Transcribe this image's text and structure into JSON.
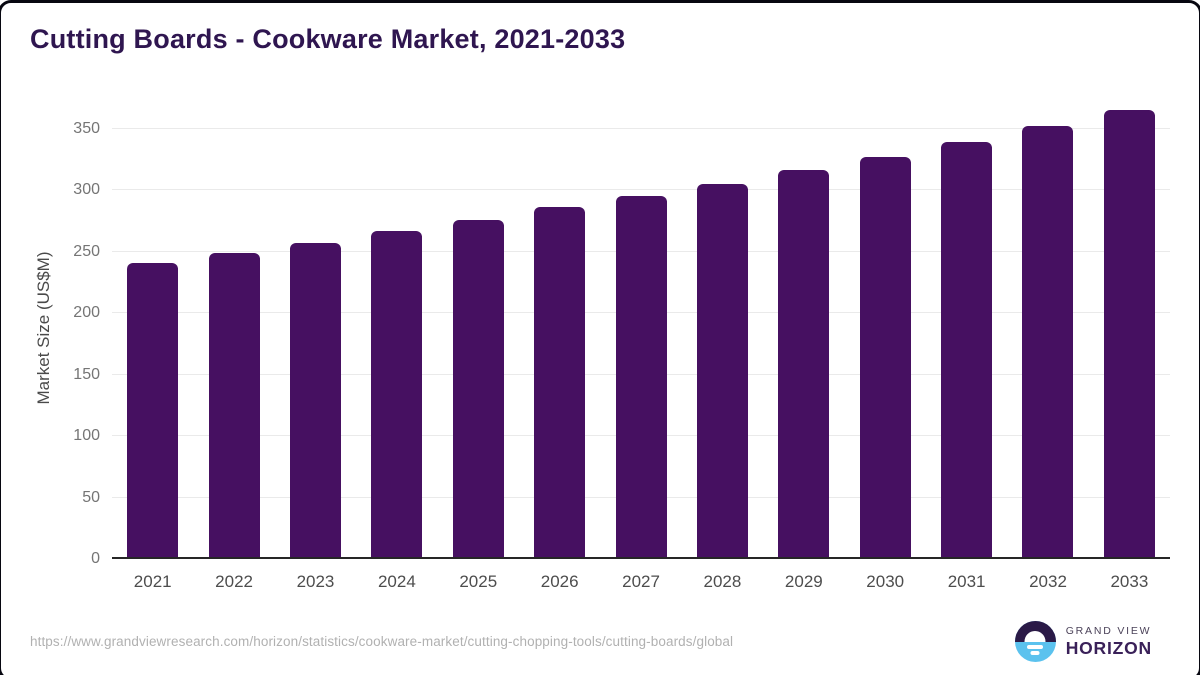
{
  "header": {
    "title": "Cutting Boards - Cookware Market, 2021-2033"
  },
  "chart_data": {
    "type": "bar",
    "title": "Cutting Boards - Cookware Market, 2021-2033",
    "categories": [
      "2021",
      "2022",
      "2023",
      "2024",
      "2025",
      "2026",
      "2027",
      "2028",
      "2029",
      "2030",
      "2031",
      "2032",
      "2033"
    ],
    "values": [
      241,
      249,
      257,
      267,
      276,
      286,
      295,
      305,
      316,
      327,
      339,
      352,
      365
    ],
    "xlabel": "",
    "ylabel": "Market Size (US$M)",
    "yticks": [
      0,
      50,
      100,
      150,
      200,
      250,
      300,
      350
    ],
    "ylim": [
      0,
      350
    ],
    "grid": true,
    "legend": false,
    "bar_color": "#461061",
    "gridline_color": "#eaeaea",
    "axis_line_color": "#262626",
    "ytick_label_color": "#757575",
    "xtick_label_color": "#4d4d4d",
    "title_color": "#2f1650"
  },
  "footer": {
    "source_url": "https://www.grandviewresearch.com/horizon/statistics/cookware-market/cutting-chopping-tools/cutting-boards/global",
    "logo": {
      "line1": "GRAND VIEW",
      "line2": "HORIZON",
      "icon": "horizon-sun-circle-icon",
      "icon_top_color": "#2b1a47",
      "icon_bottom_color": "#5bc2ee"
    }
  }
}
